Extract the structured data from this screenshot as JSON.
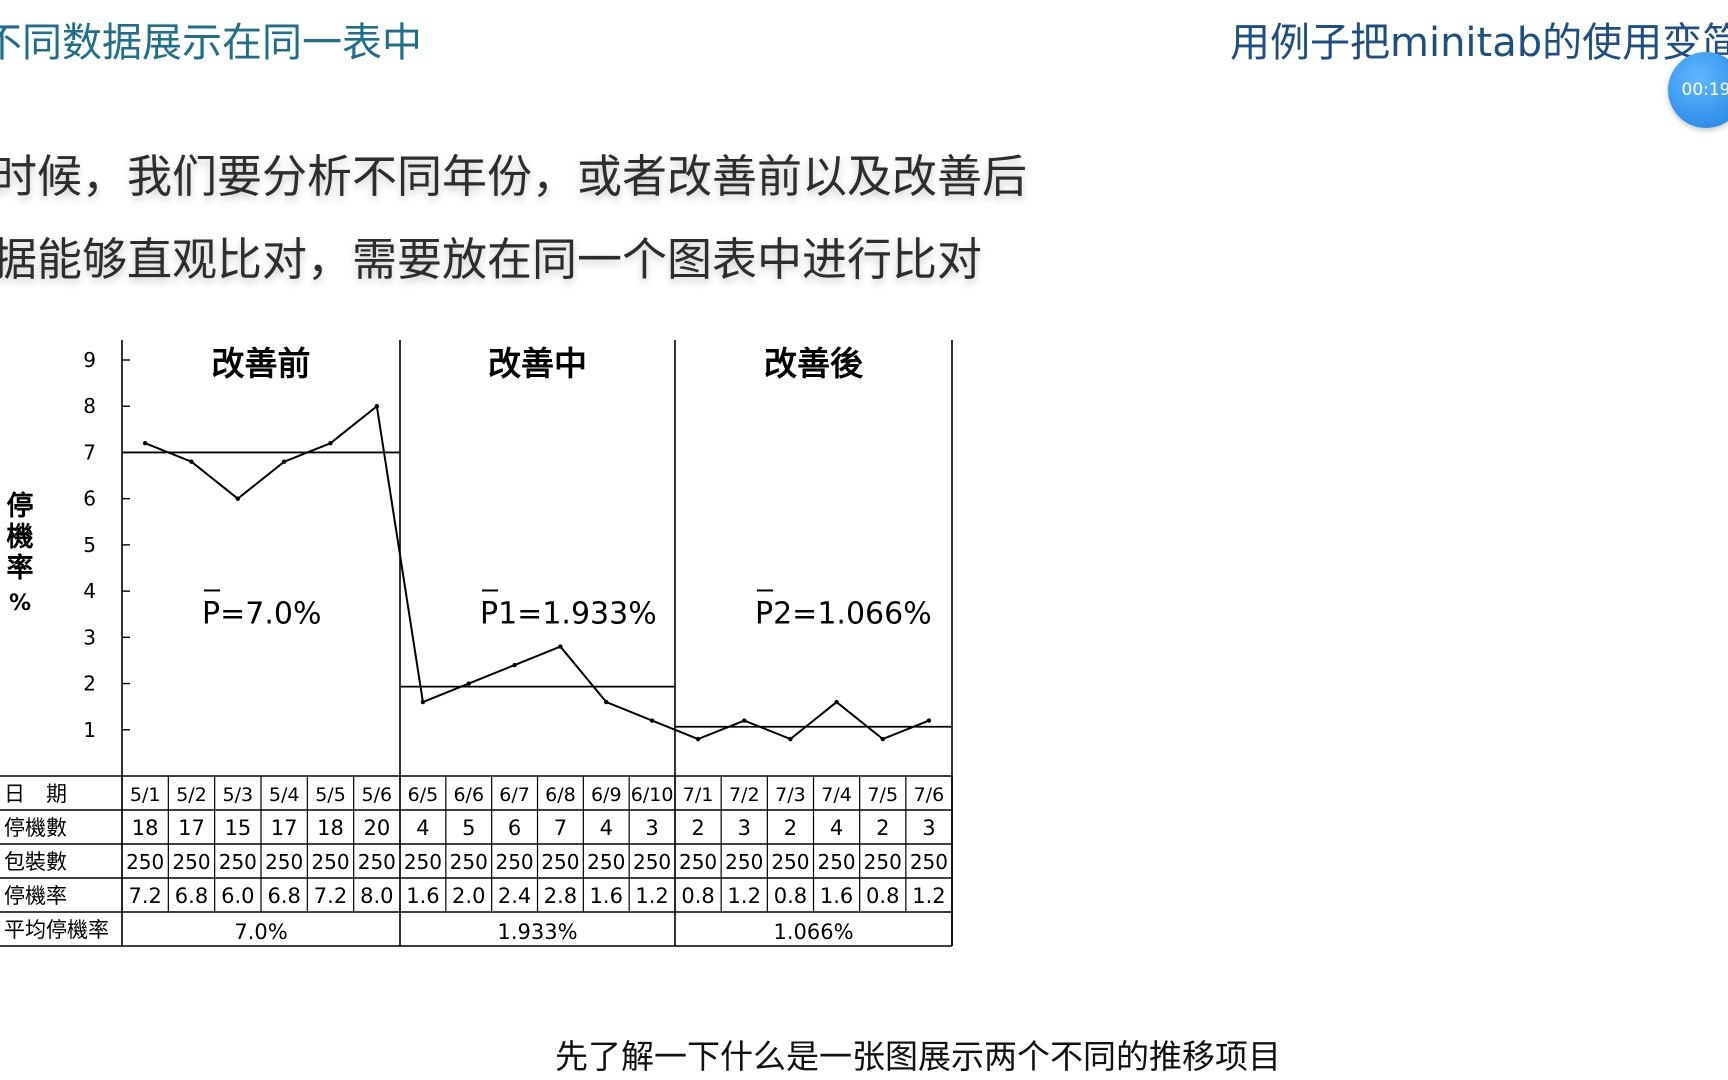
{
  "slide_title": "不同数据展示在同一表中",
  "course_title": "用例子把minitab的使用变简",
  "timer": "00:19",
  "description": [
    "时候，我们要分析不同年份，或者改善前以及改善后",
    "据能够直观比对，需要放在同一个图表中进行比对"
  ],
  "subtitle": "先了解一下什么是一张图展示两个不同的推移项目",
  "chart_data": {
    "type": "line",
    "ylabel": "停機率%",
    "ylim": [
      0,
      9
    ],
    "yticks": [
      1,
      2,
      3,
      4,
      5,
      6,
      7,
      8,
      9
    ],
    "phases": [
      {
        "name": "改善前",
        "mean_label": "P=7.0%",
        "mean": 7.0,
        "avg_cell": "7.0%",
        "x": [
          "5/1",
          "5/2",
          "5/3",
          "5/4",
          "5/5",
          "5/6"
        ],
        "stops": [
          "18",
          "17",
          "15",
          "17",
          "18",
          "20"
        ],
        "packs": [
          "250",
          "250",
          "250",
          "250",
          "250",
          "250"
        ],
        "rate_labels": [
          "7.2",
          "6.8",
          "6.0",
          "6.8",
          "7.2",
          "8.0"
        ],
        "values": [
          7.2,
          6.8,
          6.0,
          6.8,
          7.2,
          8.0
        ]
      },
      {
        "name": "改善中",
        "mean_label": "P1=1.933%",
        "mean": 1.933,
        "avg_cell": "1.933%",
        "x": [
          "6/5",
          "6/6",
          "6/7",
          "6/8",
          "6/9",
          "6/10"
        ],
        "stops": [
          "4",
          "5",
          "6",
          "7",
          "4",
          "3"
        ],
        "packs": [
          "250",
          "250",
          "250",
          "250",
          "250",
          "250"
        ],
        "rate_labels": [
          "1.6",
          "2.0",
          "2.4",
          "2.8",
          "1.6",
          "1.2"
        ],
        "values": [
          1.6,
          2.0,
          2.4,
          2.8,
          1.6,
          1.2
        ]
      },
      {
        "name": "改善後",
        "mean_label": "P2=1.066%",
        "mean": 1.066,
        "avg_cell": "1.066%",
        "x": [
          "7/1",
          "7/2",
          "7/3",
          "7/4",
          "7/5",
          "7/6"
        ],
        "stops": [
          "2",
          "3",
          "2",
          "4",
          "2",
          "3"
        ],
        "packs": [
          "250",
          "250",
          "250",
          "250",
          "250",
          "250"
        ],
        "rate_labels": [
          "0.8",
          "1.2",
          "0.8",
          "1.6",
          "0.8",
          "1.2"
        ],
        "values": [
          0.8,
          1.2,
          0.8,
          1.6,
          0.8,
          1.2
        ]
      }
    ],
    "table_row_labels": [
      "日　期",
      "停機數",
      "包裝數",
      "停機率",
      "平均停機率"
    ]
  }
}
